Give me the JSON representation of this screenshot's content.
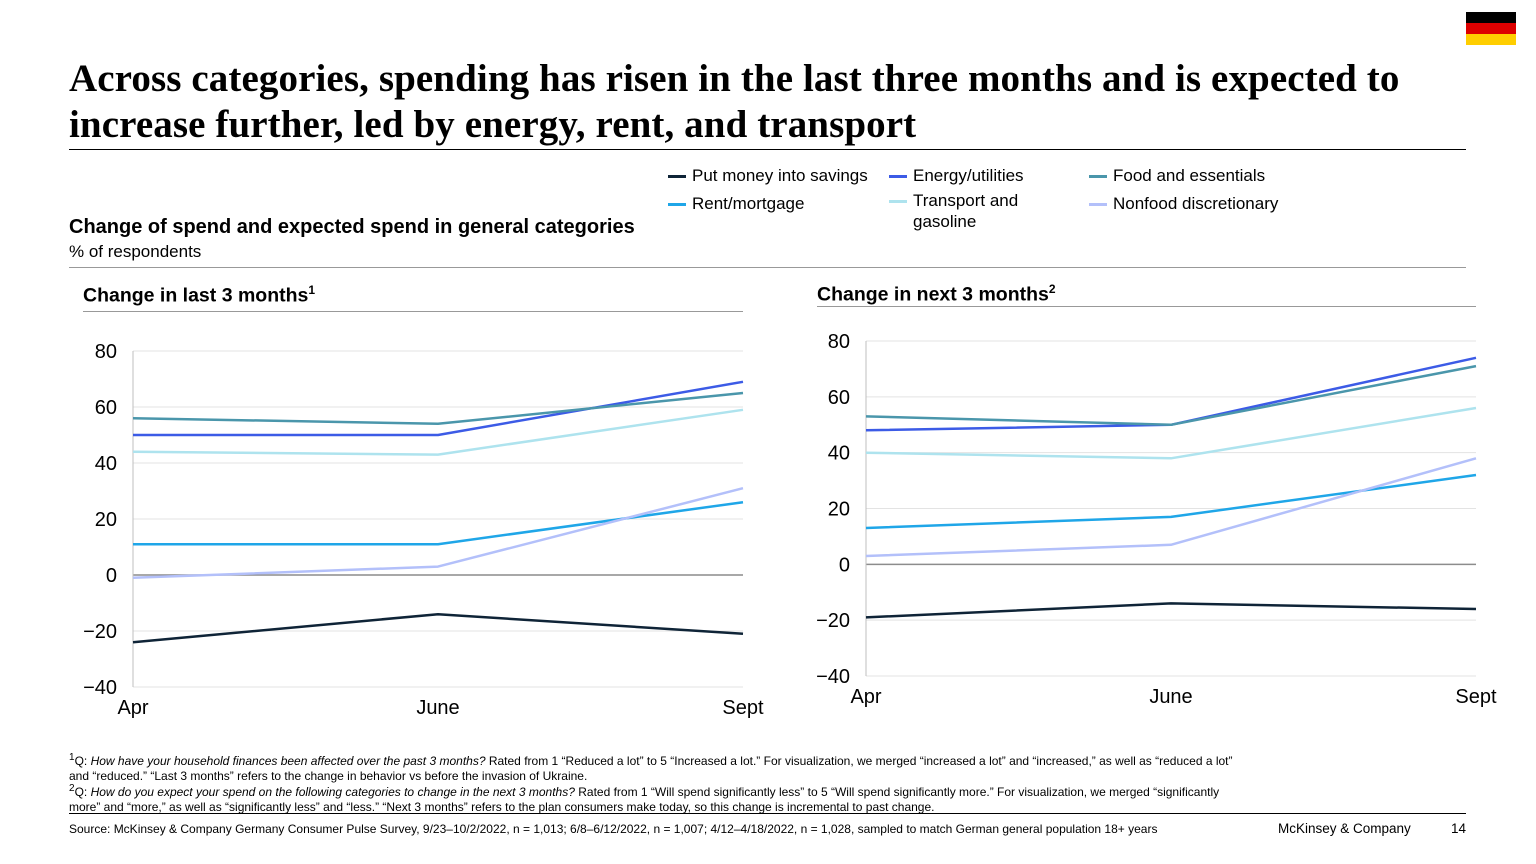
{
  "title": "Across categories, spending has risen in the last three months and is expected to increase further, led by energy, rent, and transport",
  "chart_heading": "Change of spend and expected spend in general categories",
  "chart_unit": "% of respondents",
  "colors": {
    "flag_black": "#000000",
    "flag_red": "#DD0000",
    "flag_gold": "#FFCE00"
  },
  "legend": [
    {
      "name": "Put money into savings",
      "color": "#0F2437"
    },
    {
      "name": "Energy/utilities",
      "color": "#3C5BE6"
    },
    {
      "name": "Food and essentials",
      "color": "#4A96AB"
    },
    {
      "name": "Rent/mortgage",
      "color": "#1FA6E8"
    },
    {
      "name": "Transport and gasoline",
      "color": "#AEE3EE"
    },
    {
      "name": "Nonfood discretionary",
      "color": "#B3C0FA"
    }
  ],
  "chart_data": [
    {
      "type": "line",
      "title": "Change in last 3 months",
      "footnote_marker": "1",
      "categories": [
        "Apr",
        "June",
        "Sept"
      ],
      "ylim": [
        -40,
        80
      ],
      "yticks": [
        "80",
        "60",
        "40",
        "20",
        "0",
        "−20",
        "−40"
      ],
      "series": [
        {
          "name": "Put money into savings",
          "values": [
            -24,
            -14,
            -21
          ]
        },
        {
          "name": "Energy/utilities",
          "values": [
            50,
            50,
            69
          ]
        },
        {
          "name": "Food and essentials",
          "values": [
            56,
            54,
            65
          ]
        },
        {
          "name": "Rent/mortgage",
          "values": [
            11,
            11,
            26
          ]
        },
        {
          "name": "Transport and gasoline",
          "values": [
            44,
            43,
            59
          ]
        },
        {
          "name": "Nonfood discretionary",
          "values": [
            -1,
            3,
            31
          ]
        }
      ]
    },
    {
      "type": "line",
      "title": "Change in next 3 months",
      "footnote_marker": "2",
      "categories": [
        "Apr",
        "June",
        "Sept"
      ],
      "ylim": [
        -40,
        80
      ],
      "yticks": [
        "80",
        "60",
        "40",
        "20",
        "0",
        "−20",
        "−40"
      ],
      "series": [
        {
          "name": "Put money into savings",
          "values": [
            -19,
            -14,
            -16
          ]
        },
        {
          "name": "Energy/utilities",
          "values": [
            48,
            50,
            74
          ]
        },
        {
          "name": "Food and essentials",
          "values": [
            53,
            50,
            71
          ]
        },
        {
          "name": "Rent/mortgage",
          "values": [
            13,
            17,
            32
          ]
        },
        {
          "name": "Transport and gasoline",
          "values": [
            40,
            38,
            56
          ]
        },
        {
          "name": "Nonfood discretionary",
          "values": [
            3,
            7,
            38
          ]
        }
      ]
    }
  ],
  "footnotes": {
    "f1_marker": "1",
    "f1_question": "How have your household finances been affected over the past 3 months?",
    "f1_text": " Rated from 1 “Reduced a lot” to 5 “Increased a lot.” For visualization, we merged “increased a lot” and “increased,” as well as “reduced a lot” and “reduced.” “Last 3 months” refers to the change in behavior vs before the invasion of Ukraine.",
    "f2_marker": "2",
    "f2_question": "How do you expect your spend on the following categories to change in the next 3 months?",
    "f2_text": " Rated from 1 “Will spend significantly less” to 5 “Will spend significantly more.” For visualization, we merged “significantly more” and “more,” as well as “significantly less” and “less.” “Next 3 months” refers to the plan consumers make today, so this change is incremental to past change.",
    "q_prefix": "Q: "
  },
  "source": "Source: McKinsey & Company Germany Consumer Pulse Survey, 9/23–10/2/2022, n = 1,013; 6/8–6/12/2022, n = 1,007; 4/12–4/18/2022, n = 1,028, sampled to match German general population 18+ years",
  "brand": "McKinsey & Company",
  "page_number": "14"
}
